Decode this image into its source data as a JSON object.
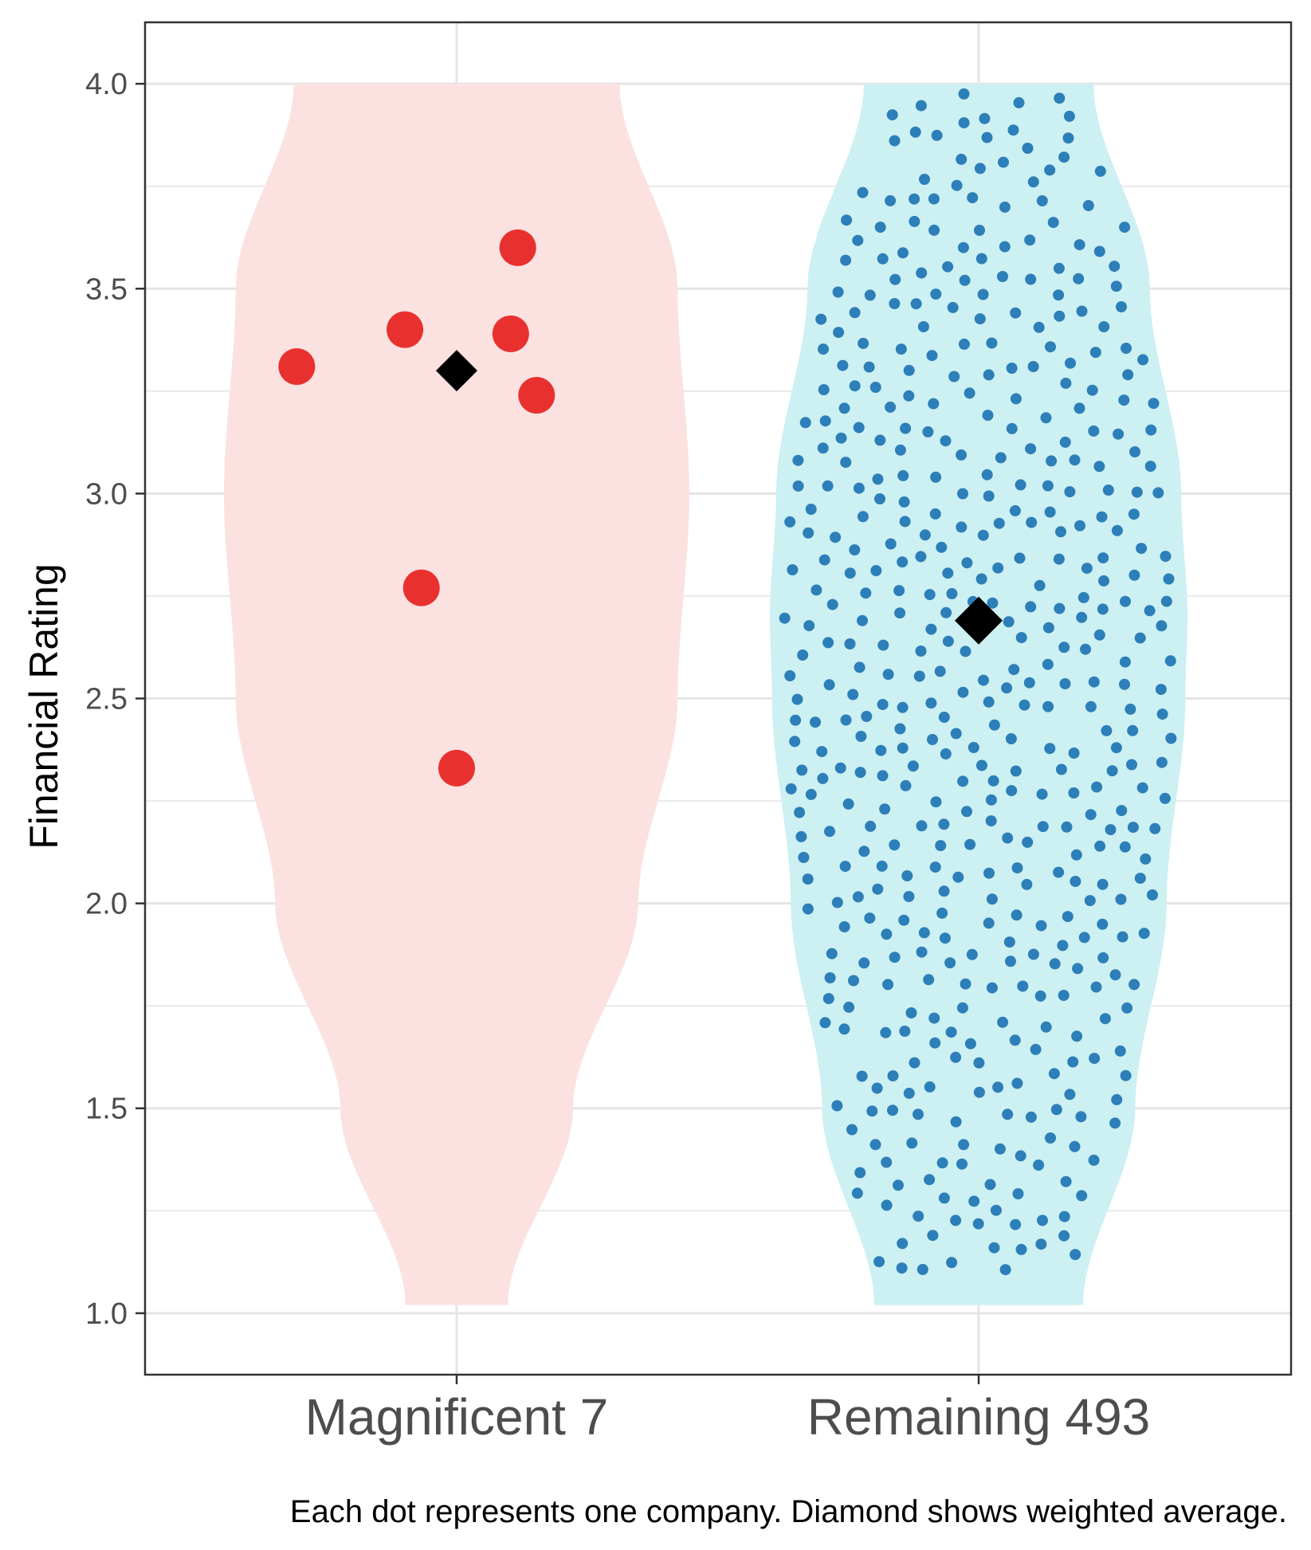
{
  "chart_data": {
    "type": "violin-dotplot",
    "ylabel": "Financial Rating",
    "xlabel": "",
    "ylim": [
      0.85,
      4.15
    ],
    "yticks": [
      "1.0",
      "1.5",
      "2.0",
      "2.5",
      "3.0",
      "3.5",
      "4.0"
    ],
    "grid": true,
    "caption": "Each dot represents one company. Diamond shows weighted average.",
    "categories": [
      "Magnificent 7",
      "Remaining 493"
    ],
    "colors": {
      "magnificent_fill": "#fbe2e1",
      "magnificent_dot": "#e8312f",
      "remaining_fill": "#cdf0f2",
      "remaining_dot": "#2c7fb8",
      "diamond": "#000000",
      "grid": "#e5e5e5",
      "frame": "#333333"
    },
    "groups": [
      {
        "name": "Magnificent 7",
        "weighted_average": 3.3,
        "points": [
          3.6,
          3.4,
          3.39,
          3.31,
          3.24,
          2.77,
          2.33
        ],
        "offsets": [
          0.26,
          -0.22,
          0.23,
          -0.68,
          0.34,
          -0.15,
          0.0
        ],
        "violin_profile": [
          [
            1.02,
            0.22
          ],
          [
            1.5,
            0.5
          ],
          [
            2.0,
            0.78
          ],
          [
            2.5,
            0.95
          ],
          [
            3.0,
            1.0
          ],
          [
            3.5,
            0.95
          ],
          [
            4.0,
            0.7
          ]
        ]
      },
      {
        "name": "Remaining 493",
        "count": 493,
        "weighted_average": 2.69,
        "points_note": "493 ratings spread between 1.1 and 4.0",
        "violin_profile": [
          [
            1.02,
            0.5
          ],
          [
            1.5,
            0.75
          ],
          [
            2.0,
            0.9
          ],
          [
            2.5,
            0.99
          ],
          [
            2.7,
            1.0
          ],
          [
            3.0,
            0.97
          ],
          [
            3.5,
            0.82
          ],
          [
            4.0,
            0.55
          ]
        ]
      }
    ]
  }
}
